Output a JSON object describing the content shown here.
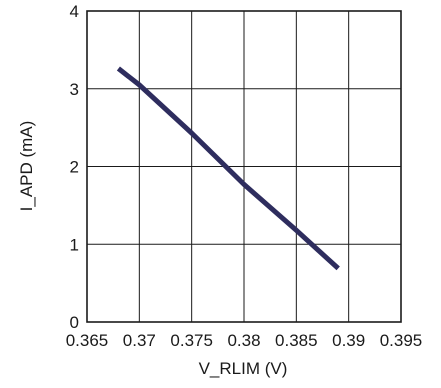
{
  "chart_data": {
    "type": "line",
    "xlabel": "V_RLIM (V)",
    "ylabel": "I_APD (mA)",
    "xlim": [
      0.365,
      0.395
    ],
    "ylim": [
      0,
      4
    ],
    "x_ticks": [
      0.365,
      0.37,
      0.375,
      0.38,
      0.385,
      0.39,
      0.395
    ],
    "x_tick_labels": [
      "0.365",
      "0.37",
      "0.375",
      "0.38",
      "0.385",
      "0.39",
      "0.395"
    ],
    "y_ticks": [
      0,
      1,
      2,
      3,
      4
    ],
    "y_tick_labels": [
      "0",
      "1",
      "2",
      "3",
      "4"
    ],
    "grid": true,
    "series": [
      {
        "x": [
          0.368,
          0.37,
          0.375,
          0.38,
          0.385,
          0.389
        ],
        "y": [
          3.26,
          3.05,
          2.43,
          1.77,
          1.18,
          0.69
        ],
        "color": "#2e2d5e"
      }
    ]
  }
}
